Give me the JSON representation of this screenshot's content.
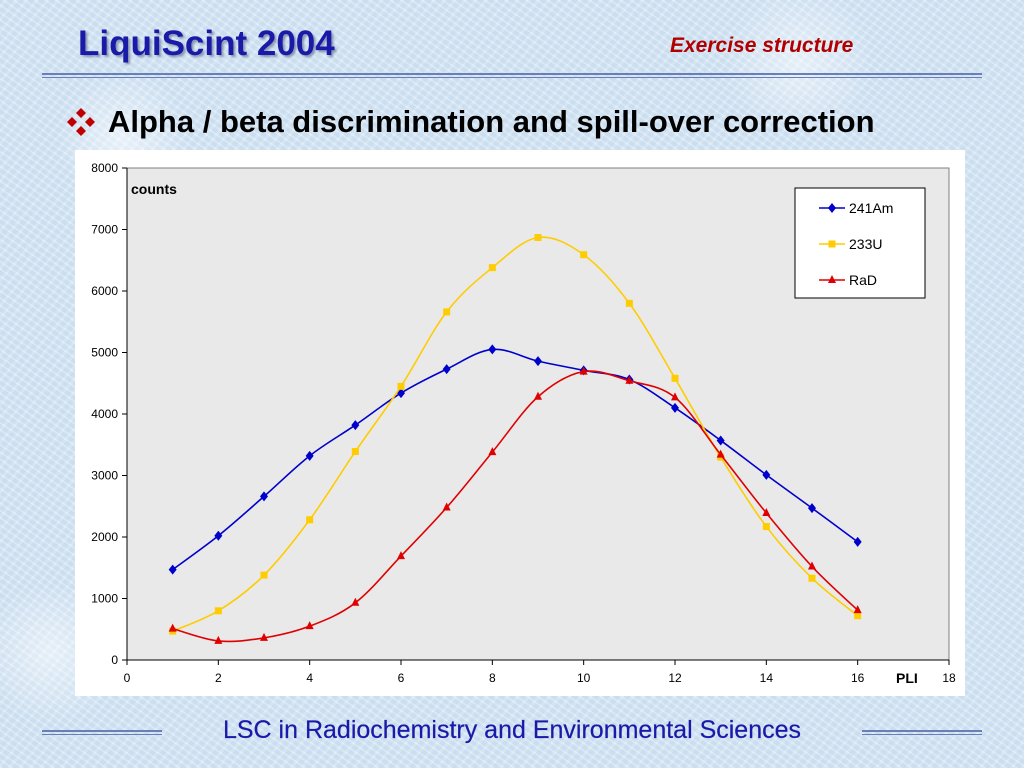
{
  "header": {
    "title": "LiquiScint 2004",
    "subtitle": "Exercise structure"
  },
  "heading": {
    "text": "Alpha / beta discrimination and spill-over correction",
    "bullet_icon": "diamond-bullet-icon",
    "bullet_color": "#c00000"
  },
  "footer": {
    "text": "LSC in Radiochemistry and Environmental Sciences"
  },
  "colors": {
    "title": "#1a1aa8",
    "subtitle": "#b00000",
    "plot_background": "#e9e9e9"
  },
  "chart_data": {
    "type": "line",
    "title": "",
    "xlabel": "PLI",
    "ylabel": "counts",
    "xlim": [
      0,
      18
    ],
    "ylim": [
      0,
      8000
    ],
    "xticks": [
      0,
      2,
      4,
      6,
      8,
      10,
      12,
      14,
      16,
      18
    ],
    "yticks": [
      0,
      1000,
      2000,
      3000,
      4000,
      5000,
      6000,
      7000,
      8000
    ],
    "grid": false,
    "legend_position": "top-right",
    "series": [
      {
        "name": "241Am",
        "color": "#0000cc",
        "marker": "diamond",
        "x": [
          1,
          2,
          3,
          4,
          5,
          6,
          7,
          8,
          9,
          10,
          11,
          12,
          13,
          14,
          15,
          16
        ],
        "y": [
          1470,
          2020,
          2660,
          3320,
          3820,
          4340,
          4730,
          5050,
          4860,
          4710,
          4560,
          4100,
          3570,
          3010,
          2470,
          1920
        ]
      },
      {
        "name": "233U",
        "color": "#ffcc00",
        "marker": "square",
        "x": [
          1,
          2,
          3,
          4,
          5,
          6,
          7,
          8,
          9,
          10,
          11,
          12,
          13,
          14,
          15,
          16
        ],
        "y": [
          470,
          800,
          1380,
          2280,
          3390,
          4450,
          5660,
          6380,
          6870,
          6590,
          5800,
          4580,
          3300,
          2170,
          1330,
          720
        ]
      },
      {
        "name": "RaD",
        "color": "#e00000",
        "marker": "triangle",
        "x": [
          1,
          2,
          3,
          4,
          5,
          6,
          7,
          8,
          9,
          10,
          11,
          12,
          13,
          14,
          15,
          16
        ],
        "y": [
          510,
          310,
          360,
          550,
          930,
          1690,
          2480,
          3380,
          4280,
          4690,
          4540,
          4270,
          3340,
          2390,
          1520,
          810
        ]
      }
    ]
  }
}
